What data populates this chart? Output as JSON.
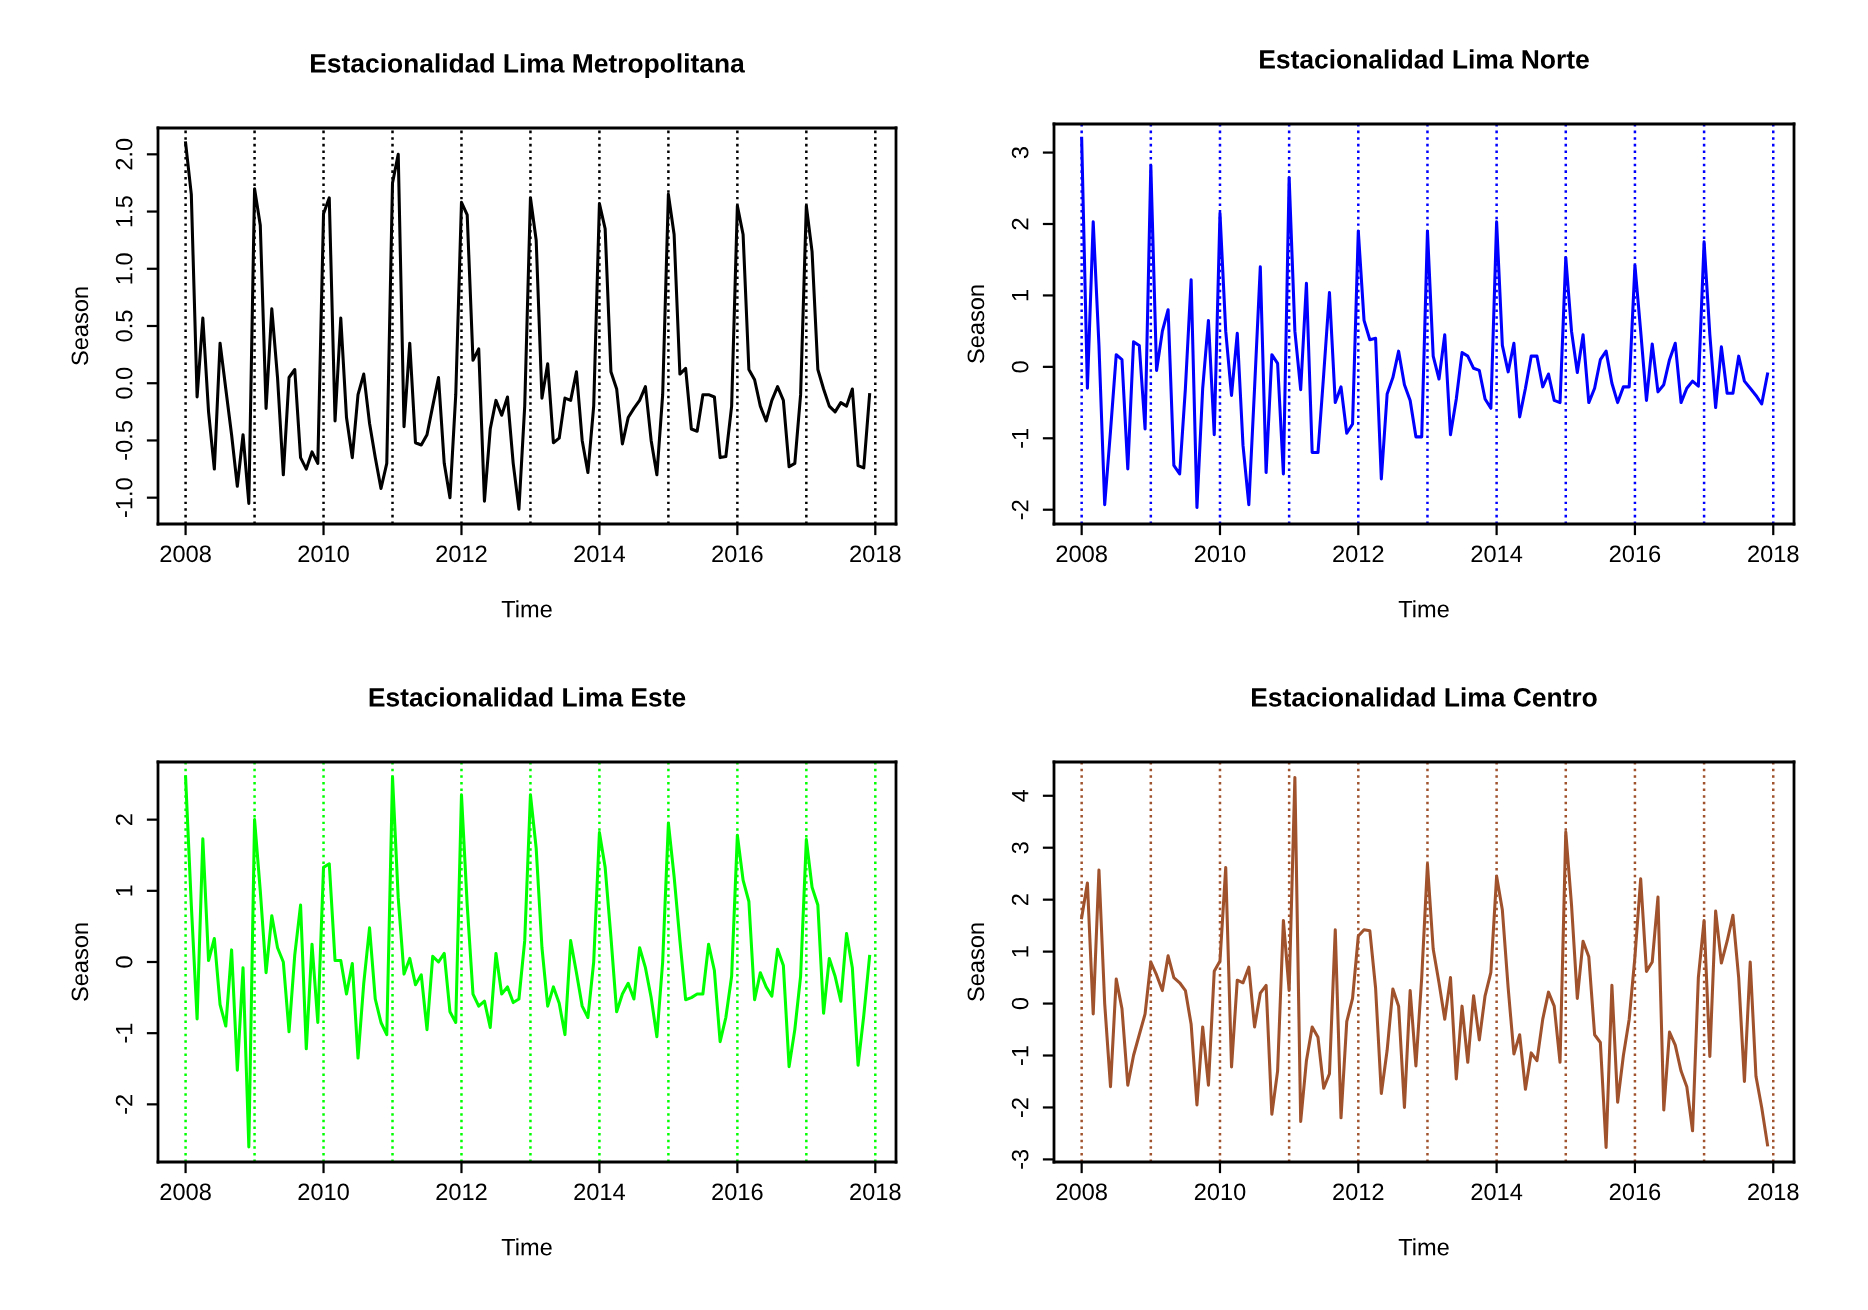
{
  "chart_data": [
    {
      "type": "line",
      "title": "Estacionalidad Lima Metropolitana",
      "xlabel": "Time",
      "ylabel": "Season",
      "x": [
        2008,
        2008.083,
        2008.167,
        2008.25,
        2008.333,
        2008.417,
        2008.5,
        2008.583,
        2008.667,
        2008.75,
        2008.833,
        2008.917,
        2009,
        2009.083,
        2009.167,
        2009.25,
        2009.333,
        2009.417,
        2009.5,
        2009.583,
        2009.667,
        2009.75,
        2009.833,
        2009.917,
        2010,
        2010.083,
        2010.167,
        2010.25,
        2010.333,
        2010.417,
        2010.5,
        2010.583,
        2010.667,
        2010.75,
        2010.833,
        2010.917,
        2011,
        2011.083,
        2011.167,
        2011.25,
        2011.333,
        2011.417,
        2011.5,
        2011.583,
        2011.667,
        2011.75,
        2011.833,
        2011.917,
        2012,
        2012.083,
        2012.167,
        2012.25,
        2012.333,
        2012.417,
        2012.5,
        2012.583,
        2012.667,
        2012.75,
        2012.833,
        2012.917,
        2013,
        2013.083,
        2013.167,
        2013.25,
        2013.333,
        2013.417,
        2013.5,
        2013.583,
        2013.667,
        2013.75,
        2013.833,
        2013.917,
        2014,
        2014.083,
        2014.167,
        2014.25,
        2014.333,
        2014.417,
        2014.5,
        2014.583,
        2014.667,
        2014.75,
        2014.833,
        2014.917,
        2015,
        2015.083,
        2015.167,
        2015.25,
        2015.333,
        2015.417,
        2015.5,
        2015.583,
        2015.667,
        2015.75,
        2015.833,
        2015.917,
        2016,
        2016.083,
        2016.167,
        2016.25,
        2016.333,
        2016.417,
        2016.5,
        2016.583,
        2016.667,
        2016.75,
        2016.833,
        2016.917,
        2017,
        2017.083,
        2017.167,
        2017.25,
        2017.333,
        2017.417,
        2017.5,
        2017.583,
        2017.667,
        2017.75,
        2017.833,
        2017.917
      ],
      "series": [
        {
          "color": "#000000",
          "values": [
            2.1,
            1.65,
            -0.12,
            0.57,
            -0.25,
            -0.75,
            0.35,
            -0.05,
            -0.45,
            -0.9,
            -0.45,
            -1.05,
            1.7,
            1.38,
            -0.22,
            0.65,
            0.05,
            -0.8,
            0.05,
            0.12,
            -0.65,
            -0.75,
            -0.6,
            -0.7,
            1.48,
            1.62,
            -0.33,
            0.57,
            -0.3,
            -0.65,
            -0.1,
            0.08,
            -0.35,
            -0.65,
            -0.92,
            -0.7,
            1.75,
            2.0,
            -0.38,
            0.35,
            -0.52,
            -0.54,
            -0.45,
            -0.2,
            0.05,
            -0.7,
            -1.0,
            -0.1,
            1.58,
            1.47,
            0.2,
            0.3,
            -1.03,
            -0.4,
            -0.15,
            -0.28,
            -0.12,
            -0.7,
            -1.1,
            -0.2,
            1.62,
            1.25,
            -0.13,
            0.17,
            -0.52,
            -0.48,
            -0.13,
            -0.15,
            0.1,
            -0.5,
            -0.78,
            -0.2,
            1.57,
            1.35,
            0.1,
            -0.05,
            -0.53,
            -0.3,
            -0.22,
            -0.15,
            -0.03,
            -0.5,
            -0.8,
            -0.1,
            1.65,
            1.3,
            0.08,
            0.13,
            -0.4,
            -0.42,
            -0.1,
            -0.1,
            -0.12,
            -0.65,
            -0.64,
            -0.2,
            1.55,
            1.3,
            0.12,
            0.03,
            -0.2,
            -0.33,
            -0.15,
            -0.03,
            -0.15,
            -0.73,
            -0.7,
            -0.1,
            1.55,
            1.15,
            0.12,
            -0.05,
            -0.2,
            -0.25,
            -0.17,
            -0.2,
            -0.05,
            -0.72,
            -0.74,
            -0.1
          ]
        }
      ],
      "xlim": [
        2007.6,
        2018.3
      ],
      "ylim": [
        -1.23,
        2.23
      ],
      "xticks": [
        2008,
        2010,
        2012,
        2014,
        2016,
        2018
      ],
      "yticks": [
        {
          "value": -1.0,
          "label": "-1.0"
        },
        {
          "value": -0.5,
          "label": "-0.5"
        },
        {
          "value": 0.0,
          "label": "0.0"
        },
        {
          "value": 0.5,
          "label": "0.5"
        },
        {
          "value": 1.0,
          "label": "1.0"
        },
        {
          "value": 1.5,
          "label": "1.5"
        },
        {
          "value": 2.0,
          "label": "2.0"
        }
      ],
      "ref_lines": [
        {
          "axis": "x",
          "value": 2008,
          "color": "#000000",
          "line_style": "dotted"
        },
        {
          "axis": "x",
          "value": 2009,
          "color": "#000000",
          "line_style": "dotted"
        },
        {
          "axis": "x",
          "value": 2010,
          "color": "#000000",
          "line_style": "dotted"
        },
        {
          "axis": "x",
          "value": 2011,
          "color": "#000000",
          "line_style": "dotted"
        },
        {
          "axis": "x",
          "value": 2012,
          "color": "#000000",
          "line_style": "dotted"
        },
        {
          "axis": "x",
          "value": 2013,
          "color": "#000000",
          "line_style": "dotted"
        },
        {
          "axis": "x",
          "value": 2014,
          "color": "#000000",
          "line_style": "dotted"
        },
        {
          "axis": "x",
          "value": 2015,
          "color": "#000000",
          "line_style": "dotted"
        },
        {
          "axis": "x",
          "value": 2016,
          "color": "#000000",
          "line_style": "dotted"
        },
        {
          "axis": "x",
          "value": 2017,
          "color": "#000000",
          "line_style": "dotted"
        },
        {
          "axis": "x",
          "value": 2018,
          "color": "#000000",
          "line_style": "dotted"
        }
      ],
      "grid": false,
      "line_style": "solid",
      "marker": "none"
    },
    {
      "type": "line",
      "title": "Estacionalidad Lima Norte",
      "xlabel": "Time",
      "ylabel": "Season",
      "x": [
        2008,
        2008.083,
        2008.167,
        2008.25,
        2008.333,
        2008.417,
        2008.5,
        2008.583,
        2008.667,
        2008.75,
        2008.833,
        2008.917,
        2009,
        2009.083,
        2009.167,
        2009.25,
        2009.333,
        2009.417,
        2009.5,
        2009.583,
        2009.667,
        2009.75,
        2009.833,
        2009.917,
        2010,
        2010.083,
        2010.167,
        2010.25,
        2010.333,
        2010.417,
        2010.5,
        2010.583,
        2010.667,
        2010.75,
        2010.833,
        2010.917,
        2011,
        2011.083,
        2011.167,
        2011.25,
        2011.333,
        2011.417,
        2011.5,
        2011.583,
        2011.667,
        2011.75,
        2011.833,
        2011.917,
        2012,
        2012.083,
        2012.167,
        2012.25,
        2012.333,
        2012.417,
        2012.5,
        2012.583,
        2012.667,
        2012.75,
        2012.833,
        2012.917,
        2013,
        2013.083,
        2013.167,
        2013.25,
        2013.333,
        2013.417,
        2013.5,
        2013.583,
        2013.667,
        2013.75,
        2013.833,
        2013.917,
        2014,
        2014.083,
        2014.167,
        2014.25,
        2014.333,
        2014.417,
        2014.5,
        2014.583,
        2014.667,
        2014.75,
        2014.833,
        2014.917,
        2015,
        2015.083,
        2015.167,
        2015.25,
        2015.333,
        2015.417,
        2015.5,
        2015.583,
        2015.667,
        2015.75,
        2015.833,
        2015.917,
        2016,
        2016.083,
        2016.167,
        2016.25,
        2016.333,
        2016.417,
        2016.5,
        2016.583,
        2016.667,
        2016.75,
        2016.833,
        2016.917,
        2017,
        2017.083,
        2017.167,
        2017.25,
        2017.333,
        2017.417,
        2017.5,
        2017.583,
        2017.667,
        2017.75,
        2017.833,
        2017.917
      ],
      "series": [
        {
          "color": "#0000ff",
          "values": [
            3.2,
            -0.3,
            2.03,
            0.3,
            -1.93,
            -0.9,
            0.17,
            0.1,
            -1.43,
            0.35,
            0.3,
            -0.87,
            2.82,
            -0.05,
            0.5,
            0.8,
            -1.38,
            -1.5,
            -0.3,
            1.22,
            -1.97,
            -0.3,
            0.65,
            -0.95,
            2.15,
            0.5,
            -0.4,
            0.47,
            -1.1,
            -1.93,
            -0.3,
            1.4,
            -1.48,
            0.17,
            0.05,
            -1.5,
            2.65,
            0.5,
            -0.32,
            1.17,
            -1.2,
            -1.2,
            -0.1,
            1.04,
            -0.5,
            -0.28,
            -0.93,
            -0.8,
            1.9,
            0.65,
            0.38,
            0.4,
            -1.57,
            -0.38,
            -0.15,
            0.22,
            -0.25,
            -0.47,
            -0.98,
            -0.98,
            1.9,
            0.15,
            -0.17,
            0.45,
            -0.95,
            -0.45,
            0.2,
            0.15,
            -0.02,
            -0.05,
            -0.45,
            -0.58,
            2.03,
            0.3,
            -0.07,
            0.33,
            -0.7,
            -0.3,
            0.15,
            0.15,
            -0.28,
            -0.1,
            -0.47,
            -0.5,
            1.53,
            0.5,
            -0.08,
            0.45,
            -0.5,
            -0.3,
            0.1,
            0.22,
            -0.23,
            -0.5,
            -0.28,
            -0.28,
            1.42,
            0.5,
            -0.47,
            0.32,
            -0.35,
            -0.25,
            0.1,
            0.33,
            -0.5,
            -0.3,
            -0.2,
            -0.27,
            1.75,
            0.45,
            -0.57,
            0.28,
            -0.37,
            -0.37,
            0.15,
            -0.2,
            -0.3,
            -0.4,
            -0.52,
            -0.1
          ]
        }
      ],
      "xlim": [
        2007.6,
        2018.3
      ],
      "ylim": [
        -2.2,
        3.4
      ],
      "xticks": [
        2008,
        2010,
        2012,
        2014,
        2016,
        2018
      ],
      "yticks": [
        -2,
        -1,
        0,
        1,
        2,
        3
      ],
      "ref_lines": [
        {
          "axis": "x",
          "value": 2008,
          "color": "#0000ff",
          "line_style": "dotted"
        },
        {
          "axis": "x",
          "value": 2009,
          "color": "#0000ff",
          "line_style": "dotted"
        },
        {
          "axis": "x",
          "value": 2010,
          "color": "#0000ff",
          "line_style": "dotted"
        },
        {
          "axis": "x",
          "value": 2011,
          "color": "#0000ff",
          "line_style": "dotted"
        },
        {
          "axis": "x",
          "value": 2012,
          "color": "#0000ff",
          "line_style": "dotted"
        },
        {
          "axis": "x",
          "value": 2013,
          "color": "#0000ff",
          "line_style": "dotted"
        },
        {
          "axis": "x",
          "value": 2014,
          "color": "#0000ff",
          "line_style": "dotted"
        },
        {
          "axis": "x",
          "value": 2015,
          "color": "#0000ff",
          "line_style": "dotted"
        },
        {
          "axis": "x",
          "value": 2016,
          "color": "#0000ff",
          "line_style": "dotted"
        },
        {
          "axis": "x",
          "value": 2017,
          "color": "#0000ff",
          "line_style": "dotted"
        },
        {
          "axis": "x",
          "value": 2018,
          "color": "#0000ff",
          "line_style": "dotted"
        }
      ],
      "grid": false,
      "line_style": "solid",
      "marker": "none"
    },
    {
      "type": "line",
      "title": "Estacionalidad Lima Este",
      "xlabel": "Time",
      "ylabel": "Season",
      "x": [
        2008,
        2008.083,
        2008.167,
        2008.25,
        2008.333,
        2008.417,
        2008.5,
        2008.583,
        2008.667,
        2008.75,
        2008.833,
        2008.917,
        2009,
        2009.083,
        2009.167,
        2009.25,
        2009.333,
        2009.417,
        2009.5,
        2009.583,
        2009.667,
        2009.75,
        2009.833,
        2009.917,
        2010,
        2010.083,
        2010.167,
        2010.25,
        2010.333,
        2010.417,
        2010.5,
        2010.583,
        2010.667,
        2010.75,
        2010.833,
        2010.917,
        2011,
        2011.083,
        2011.167,
        2011.25,
        2011.333,
        2011.417,
        2011.5,
        2011.583,
        2011.667,
        2011.75,
        2011.833,
        2011.917,
        2012,
        2012.083,
        2012.167,
        2012.25,
        2012.333,
        2012.417,
        2012.5,
        2012.583,
        2012.667,
        2012.75,
        2012.833,
        2012.917,
        2013,
        2013.083,
        2013.167,
        2013.25,
        2013.333,
        2013.417,
        2013.5,
        2013.583,
        2013.667,
        2013.75,
        2013.833,
        2013.917,
        2014,
        2014.083,
        2014.167,
        2014.25,
        2014.333,
        2014.417,
        2014.5,
        2014.583,
        2014.667,
        2014.75,
        2014.833,
        2014.917,
        2015,
        2015.083,
        2015.167,
        2015.25,
        2015.333,
        2015.417,
        2015.5,
        2015.583,
        2015.667,
        2015.75,
        2015.833,
        2015.917,
        2016,
        2016.083,
        2016.167,
        2016.25,
        2016.333,
        2016.417,
        2016.5,
        2016.583,
        2016.667,
        2016.75,
        2016.833,
        2016.917,
        2017,
        2017.083,
        2017.167,
        2017.25,
        2017.333,
        2017.417,
        2017.5,
        2017.583,
        2017.667,
        2017.75,
        2017.833,
        2017.917
      ],
      "series": [
        {
          "color": "#00ff00",
          "values": [
            2.6,
            0.8,
            -0.8,
            1.73,
            0.02,
            0.33,
            -0.6,
            -0.9,
            0.17,
            -1.52,
            -0.08,
            -2.6,
            2.0,
            1.0,
            -0.15,
            0.65,
            0.2,
            0.0,
            -0.98,
            0.1,
            0.8,
            -1.22,
            0.25,
            -0.85,
            1.33,
            1.38,
            0.02,
            0.02,
            -0.45,
            -0.02,
            -1.35,
            -0.3,
            0.48,
            -0.52,
            -0.85,
            -1.02,
            2.6,
            0.9,
            -0.17,
            0.05,
            -0.32,
            -0.18,
            -0.95,
            0.08,
            0.0,
            0.12,
            -0.7,
            -0.85,
            2.35,
            0.8,
            -0.45,
            -0.62,
            -0.55,
            -0.92,
            0.12,
            -0.45,
            -0.35,
            -0.57,
            -0.52,
            0.3,
            2.35,
            1.6,
            0.2,
            -0.62,
            -0.35,
            -0.58,
            -1.02,
            0.3,
            -0.15,
            -0.62,
            -0.78,
            0.0,
            1.82,
            1.33,
            0.35,
            -0.7,
            -0.45,
            -0.3,
            -0.52,
            0.2,
            -0.08,
            -0.5,
            -1.05,
            0.0,
            1.95,
            1.2,
            0.3,
            -0.53,
            -0.5,
            -0.45,
            -0.45,
            0.25,
            -0.12,
            -1.12,
            -0.78,
            -0.2,
            1.78,
            1.15,
            0.85,
            -0.53,
            -0.15,
            -0.35,
            -0.48,
            0.18,
            -0.05,
            -1.47,
            -0.95,
            -0.2,
            1.72,
            1.05,
            0.8,
            -0.72,
            0.05,
            -0.2,
            -0.55,
            0.4,
            -0.08,
            -1.45,
            -0.75,
            0.08
          ]
        }
      ],
      "xlim": [
        2007.6,
        2018.3
      ],
      "ylim": [
        -2.81,
        2.81
      ],
      "xticks": [
        2008,
        2010,
        2012,
        2014,
        2016,
        2018
      ],
      "yticks": [
        -2,
        -1,
        0,
        1,
        2
      ],
      "ref_lines": [
        {
          "axis": "x",
          "value": 2008,
          "color": "#00ff00",
          "line_style": "dotted"
        },
        {
          "axis": "x",
          "value": 2009,
          "color": "#00ff00",
          "line_style": "dotted"
        },
        {
          "axis": "x",
          "value": 2010,
          "color": "#00ff00",
          "line_style": "dotted"
        },
        {
          "axis": "x",
          "value": 2011,
          "color": "#00ff00",
          "line_style": "dotted"
        },
        {
          "axis": "x",
          "value": 2012,
          "color": "#00ff00",
          "line_style": "dotted"
        },
        {
          "axis": "x",
          "value": 2013,
          "color": "#00ff00",
          "line_style": "dotted"
        },
        {
          "axis": "x",
          "value": 2014,
          "color": "#00ff00",
          "line_style": "dotted"
        },
        {
          "axis": "x",
          "value": 2015,
          "color": "#00ff00",
          "line_style": "dotted"
        },
        {
          "axis": "x",
          "value": 2016,
          "color": "#00ff00",
          "line_style": "dotted"
        },
        {
          "axis": "x",
          "value": 2017,
          "color": "#00ff00",
          "line_style": "dotted"
        },
        {
          "axis": "x",
          "value": 2018,
          "color": "#00ff00",
          "line_style": "dotted"
        }
      ],
      "grid": false,
      "line_style": "solid",
      "marker": "none"
    },
    {
      "type": "line",
      "title": "Estacionalidad Lima Centro",
      "xlabel": "Time",
      "ylabel": "Season",
      "x": [
        2008,
        2008.083,
        2008.167,
        2008.25,
        2008.333,
        2008.417,
        2008.5,
        2008.583,
        2008.667,
        2008.75,
        2008.833,
        2008.917,
        2009,
        2009.083,
        2009.167,
        2009.25,
        2009.333,
        2009.417,
        2009.5,
        2009.583,
        2009.667,
        2009.75,
        2009.833,
        2009.917,
        2010,
        2010.083,
        2010.167,
        2010.25,
        2010.333,
        2010.417,
        2010.5,
        2010.583,
        2010.667,
        2010.75,
        2010.833,
        2010.917,
        2011,
        2011.083,
        2011.167,
        2011.25,
        2011.333,
        2011.417,
        2011.5,
        2011.583,
        2011.667,
        2011.75,
        2011.833,
        2011.917,
        2012,
        2012.083,
        2012.167,
        2012.25,
        2012.333,
        2012.417,
        2012.5,
        2012.583,
        2012.667,
        2012.75,
        2012.833,
        2012.917,
        2013,
        2013.083,
        2013.167,
        2013.25,
        2013.333,
        2013.417,
        2013.5,
        2013.583,
        2013.667,
        2013.75,
        2013.833,
        2013.917,
        2014,
        2014.083,
        2014.167,
        2014.25,
        2014.333,
        2014.417,
        2014.5,
        2014.583,
        2014.667,
        2014.75,
        2014.833,
        2014.917,
        2015,
        2015.083,
        2015.167,
        2015.25,
        2015.333,
        2015.417,
        2015.5,
        2015.583,
        2015.667,
        2015.75,
        2015.833,
        2015.917,
        2016,
        2016.083,
        2016.167,
        2016.25,
        2016.333,
        2016.417,
        2016.5,
        2016.583,
        2016.667,
        2016.75,
        2016.833,
        2016.917,
        2017,
        2017.083,
        2017.167,
        2017.25,
        2017.333,
        2017.417,
        2017.5,
        2017.583,
        2017.667,
        2017.75,
        2017.833,
        2017.917
      ],
      "series": [
        {
          "color": "#a0522d",
          "values": [
            1.65,
            2.32,
            -0.2,
            2.57,
            0.0,
            -1.6,
            0.47,
            -0.1,
            -1.57,
            -1.0,
            -0.6,
            -0.2,
            0.8,
            0.55,
            0.25,
            0.92,
            0.5,
            0.4,
            0.25,
            -0.4,
            -1.95,
            -0.45,
            -1.57,
            0.62,
            0.82,
            2.62,
            -1.22,
            0.45,
            0.4,
            0.7,
            -0.45,
            0.2,
            0.35,
            -2.13,
            -1.3,
            1.6,
            0.25,
            4.35,
            -2.27,
            -1.1,
            -0.45,
            -0.65,
            -1.63,
            -1.35,
            1.42,
            -2.2,
            -0.35,
            0.1,
            1.3,
            1.42,
            1.4,
            0.3,
            -1.73,
            -0.9,
            0.28,
            -0.05,
            -2.0,
            0.25,
            -1.2,
            0.5,
            2.68,
            1.05,
            0.4,
            -0.3,
            0.5,
            -1.45,
            -0.05,
            -1.13,
            0.15,
            -0.7,
            0.15,
            0.6,
            2.45,
            1.8,
            0.3,
            -0.97,
            -0.6,
            -1.65,
            -0.95,
            -1.1,
            -0.3,
            0.22,
            -0.05,
            -1.13,
            3.3,
            1.9,
            0.1,
            1.2,
            0.9,
            -0.6,
            -0.75,
            -2.77,
            0.35,
            -1.9,
            -1.0,
            -0.3,
            0.9,
            2.4,
            0.62,
            0.8,
            2.05,
            -2.05,
            -0.55,
            -0.8,
            -1.3,
            -1.6,
            -2.45,
            0.5,
            1.6,
            -1.02,
            1.78,
            0.78,
            1.2,
            1.7,
            0.5,
            -1.5,
            0.8,
            -1.4,
            -2.0,
            -2.72
          ]
        }
      ],
      "xlim": [
        2007.6,
        2018.3
      ],
      "ylim": [
        -3.05,
        4.65
      ],
      "xticks": [
        2008,
        2010,
        2012,
        2014,
        2016,
        2018
      ],
      "yticks": [
        -3,
        -2,
        -1,
        0,
        1,
        2,
        3,
        4
      ],
      "ref_lines": [
        {
          "axis": "x",
          "value": 2008,
          "color": "#a0522d",
          "line_style": "dotted"
        },
        {
          "axis": "x",
          "value": 2009,
          "color": "#a0522d",
          "line_style": "dotted"
        },
        {
          "axis": "x",
          "value": 2010,
          "color": "#a0522d",
          "line_style": "dotted"
        },
        {
          "axis": "x",
          "value": 2011,
          "color": "#a0522d",
          "line_style": "dotted"
        },
        {
          "axis": "x",
          "value": 2012,
          "color": "#a0522d",
          "line_style": "dotted"
        },
        {
          "axis": "x",
          "value": 2013,
          "color": "#a0522d",
          "line_style": "dotted"
        },
        {
          "axis": "x",
          "value": 2014,
          "color": "#a0522d",
          "line_style": "dotted"
        },
        {
          "axis": "x",
          "value": 2015,
          "color": "#a0522d",
          "line_style": "dotted"
        },
        {
          "axis": "x",
          "value": 2016,
          "color": "#a0522d",
          "line_style": "dotted"
        },
        {
          "axis": "x",
          "value": 2017,
          "color": "#a0522d",
          "line_style": "dotted"
        },
        {
          "axis": "x",
          "value": 2018,
          "color": "#a0522d",
          "line_style": "dotted"
        }
      ],
      "grid": false,
      "line_style": "solid",
      "marker": "none"
    }
  ]
}
